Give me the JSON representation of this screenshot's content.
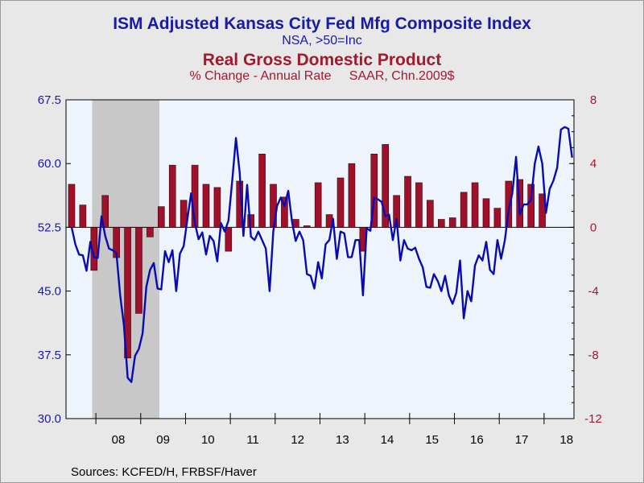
{
  "header": {
    "title1": "ISM Adjusted Kansas City Fed Mfg Composite Index",
    "subtitle1": "NSA, >50=Inc",
    "title2": "Real Gross Domestic Product",
    "subtitle2": "% Change - Annual Rate     SAAR, Chn.2009$"
  },
  "footer": {
    "source": "Sources:  KCFED/H, FRBSF/Haver"
  },
  "colors": {
    "plot_background": "#eef4fc",
    "recession_shade": "#c8c8c8",
    "line": "#0a0ab4",
    "bars": "#a0102a",
    "left_axis": "#1a1aa8",
    "right_axis": "#a01a30",
    "page_background": "#e8e8e8"
  },
  "chart_data": {
    "type": "bar+line",
    "x_labels": [
      "08",
      "09",
      "10",
      "11",
      "12",
      "13",
      "14",
      "15",
      "16",
      "17",
      "18"
    ],
    "x_range": [
      "2007-05",
      "2018-09"
    ],
    "recession": [
      "2007-12",
      "2009-06"
    ],
    "left_axis": {
      "ylim": [
        30.0,
        67.5
      ],
      "ticks": [
        "30.0",
        "37.5",
        "45.0",
        "52.5",
        "60.0",
        "67.5"
      ]
    },
    "right_axis": {
      "ylim": [
        -12,
        8
      ],
      "ticks": [
        "-12",
        "-8",
        "-4",
        "0",
        "4",
        "8"
      ]
    },
    "series": [
      {
        "name": "Real Gross Domestic Product",
        "type": "bar",
        "axis": "right",
        "points": [
          [
            "2007-06",
            2.7
          ],
          [
            "2007-09",
            1.4
          ],
          [
            "2007-12",
            -2.7
          ],
          [
            "2008-03",
            2.0
          ],
          [
            "2008-06",
            -1.9
          ],
          [
            "2008-09",
            -8.2
          ],
          [
            "2008-12",
            -5.4
          ],
          [
            "2009-03",
            -0.6
          ],
          [
            "2009-06",
            1.3
          ],
          [
            "2009-09",
            3.9
          ],
          [
            "2009-12",
            1.7
          ],
          [
            "2010-03",
            3.9
          ],
          [
            "2010-06",
            2.7
          ],
          [
            "2010-09",
            2.5
          ],
          [
            "2010-12",
            -1.5
          ],
          [
            "2011-03",
            2.9
          ],
          [
            "2011-06",
            0.8
          ],
          [
            "2011-09",
            4.6
          ],
          [
            "2011-12",
            2.7
          ],
          [
            "2012-03",
            1.9
          ],
          [
            "2012-06",
            0.5
          ],
          [
            "2012-09",
            0.1
          ],
          [
            "2012-12",
            2.8
          ],
          [
            "2013-03",
            0.8
          ],
          [
            "2013-06",
            3.1
          ],
          [
            "2013-09",
            4.0
          ],
          [
            "2013-12",
            -1.5
          ],
          [
            "2014-03",
            4.6
          ],
          [
            "2014-06",
            5.2
          ],
          [
            "2014-09",
            2.0
          ],
          [
            "2014-12",
            3.2
          ],
          [
            "2015-03",
            2.8
          ],
          [
            "2015-06",
            1.7
          ],
          [
            "2015-09",
            0.5
          ],
          [
            "2015-12",
            0.6
          ],
          [
            "2016-03",
            2.2
          ],
          [
            "2016-06",
            2.8
          ],
          [
            "2016-09",
            1.8
          ],
          [
            "2016-12",
            1.2
          ],
          [
            "2017-03",
            2.9
          ],
          [
            "2017-06",
            3.0
          ],
          [
            "2017-09",
            2.7
          ],
          [
            "2017-12",
            2.1
          ]
        ]
      },
      {
        "name": "ISM Adjusted Kansas City Fed Mfg Composite Index",
        "type": "line",
        "axis": "left",
        "points": [
          [
            "2007-06",
            52.5
          ],
          [
            "2007-07",
            50.5
          ],
          [
            "2007-08",
            49.3
          ],
          [
            "2007-09",
            49.2
          ],
          [
            "2007-10",
            47.4
          ],
          [
            "2007-11",
            50.8
          ],
          [
            "2007-12",
            49.0
          ],
          [
            "2008-01",
            48.9
          ],
          [
            "2008-02",
            53.8
          ],
          [
            "2008-03",
            51.5
          ],
          [
            "2008-04",
            50.0
          ],
          [
            "2008-05",
            49.8
          ],
          [
            "2008-06",
            49.5
          ],
          [
            "2008-07",
            44.5
          ],
          [
            "2008-08",
            41.0
          ],
          [
            "2008-09",
            34.8
          ],
          [
            "2008-10",
            34.3
          ],
          [
            "2008-11",
            37.4
          ],
          [
            "2008-12",
            38.2
          ],
          [
            "2009-01",
            40.0
          ],
          [
            "2009-02",
            45.5
          ],
          [
            "2009-03",
            47.5
          ],
          [
            "2009-04",
            48.3
          ],
          [
            "2009-05",
            45.3
          ],
          [
            "2009-06",
            45.2
          ],
          [
            "2009-07",
            49.7
          ],
          [
            "2009-08",
            48.4
          ],
          [
            "2009-09",
            49.8
          ],
          [
            "2009-10",
            45.0
          ],
          [
            "2009-11",
            49.4
          ],
          [
            "2009-12",
            50.3
          ],
          [
            "2010-01",
            53.5
          ],
          [
            "2010-02",
            56.5
          ],
          [
            "2010-03",
            53.0
          ],
          [
            "2010-04",
            51.1
          ],
          [
            "2010-05",
            51.9
          ],
          [
            "2010-06",
            49.3
          ],
          [
            "2010-07",
            51.5
          ],
          [
            "2010-08",
            50.9
          ],
          [
            "2010-09",
            48.5
          ],
          [
            "2010-10",
            53.0
          ],
          [
            "2010-11",
            52.0
          ],
          [
            "2010-12",
            53.3
          ],
          [
            "2011-01",
            58.0
          ],
          [
            "2011-02",
            63.0
          ],
          [
            "2011-03",
            59.0
          ],
          [
            "2011-04",
            51.5
          ],
          [
            "2011-05",
            57.5
          ],
          [
            "2011-06",
            51.4
          ],
          [
            "2011-07",
            51.0
          ],
          [
            "2011-08",
            52.0
          ],
          [
            "2011-09",
            51.0
          ],
          [
            "2011-10",
            50.0
          ],
          [
            "2011-11",
            45.0
          ],
          [
            "2011-12",
            52.0
          ],
          [
            "2012-01",
            55.0
          ],
          [
            "2012-02",
            56.0
          ],
          [
            "2012-03",
            55.0
          ],
          [
            "2012-04",
            56.8
          ],
          [
            "2012-05",
            53.2
          ],
          [
            "2012-06",
            50.9
          ],
          [
            "2012-07",
            52.0
          ],
          [
            "2012-08",
            51.0
          ],
          [
            "2012-09",
            47.0
          ],
          [
            "2012-10",
            46.8
          ],
          [
            "2012-11",
            45.3
          ],
          [
            "2012-12",
            48.4
          ],
          [
            "2013-01",
            46.5
          ],
          [
            "2013-02",
            50.5
          ],
          [
            "2013-03",
            51.0
          ],
          [
            "2013-04",
            53.5
          ],
          [
            "2013-05",
            48.8
          ],
          [
            "2013-06",
            52.0
          ],
          [
            "2013-07",
            51.8
          ],
          [
            "2013-08",
            49.0
          ],
          [
            "2013-09",
            49.0
          ],
          [
            "2013-10",
            51.0
          ],
          [
            "2013-11",
            51.0
          ],
          [
            "2013-12",
            44.5
          ],
          [
            "2014-01",
            52.4
          ],
          [
            "2014-02",
            52.1
          ],
          [
            "2014-03",
            56.0
          ],
          [
            "2014-04",
            55.8
          ],
          [
            "2014-05",
            55.5
          ],
          [
            "2014-06",
            53.8
          ],
          [
            "2014-07",
            54.0
          ],
          [
            "2014-08",
            51.0
          ],
          [
            "2014-09",
            53.5
          ],
          [
            "2014-10",
            48.6
          ],
          [
            "2014-11",
            51.0
          ],
          [
            "2014-12",
            50.0
          ],
          [
            "2015-01",
            49.8
          ],
          [
            "2015-02",
            50.1
          ],
          [
            "2015-03",
            48.8
          ],
          [
            "2015-04",
            47.8
          ],
          [
            "2015-05",
            45.5
          ],
          [
            "2015-06",
            45.4
          ],
          [
            "2015-07",
            47.0
          ],
          [
            "2015-08",
            46.2
          ],
          [
            "2015-09",
            45.0
          ],
          [
            "2015-10",
            46.8
          ],
          [
            "2015-11",
            44.5
          ],
          [
            "2015-12",
            43.5
          ],
          [
            "2016-01",
            44.8
          ],
          [
            "2016-02",
            48.6
          ],
          [
            "2016-03",
            41.8
          ],
          [
            "2016-04",
            45.0
          ],
          [
            "2016-05",
            43.8
          ],
          [
            "2016-06",
            48.0
          ],
          [
            "2016-07",
            49.2
          ],
          [
            "2016-08",
            48.6
          ],
          [
            "2016-09",
            50.8
          ],
          [
            "2016-10",
            47.5
          ],
          [
            "2016-11",
            47.0
          ],
          [
            "2016-12",
            51.0
          ],
          [
            "2017-01",
            48.8
          ],
          [
            "2017-02",
            51.0
          ],
          [
            "2017-03",
            54.5
          ],
          [
            "2017-04",
            56.5
          ],
          [
            "2017-05",
            60.8
          ],
          [
            "2017-06",
            54.0
          ],
          [
            "2017-07",
            55.2
          ],
          [
            "2017-08",
            55.2
          ],
          [
            "2017-09",
            55.7
          ],
          [
            "2017-10",
            60.0
          ],
          [
            "2017-11",
            62.0
          ],
          [
            "2017-12",
            60.0
          ],
          [
            "2018-01",
            54.2
          ],
          [
            "2018-02",
            57.0
          ],
          [
            "2018-03",
            58.0
          ],
          [
            "2018-04",
            59.5
          ],
          [
            "2018-05",
            64.0
          ],
          [
            "2018-06",
            64.3
          ],
          [
            "2018-07",
            64.1
          ],
          [
            "2018-08",
            60.7
          ]
        ]
      }
    ]
  }
}
